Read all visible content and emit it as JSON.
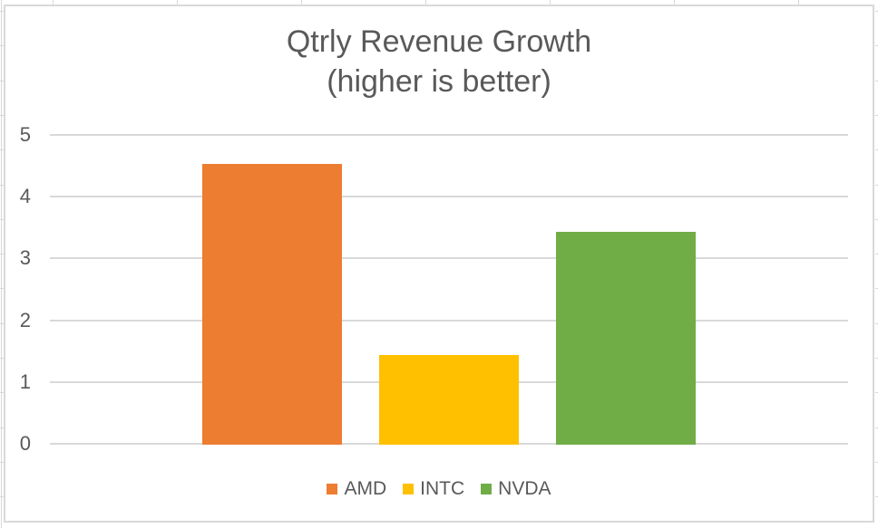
{
  "chart_data": {
    "type": "bar",
    "title": "Qtrly Revenue Growth",
    "subtitle": "(higher is better)",
    "categories": [
      "AMD",
      "INTC",
      "NVDA"
    ],
    "values": [
      4.55,
      1.45,
      3.45
    ],
    "bar_colors": [
      "#ED7D31",
      "#FFC000",
      "#70AD47"
    ],
    "xlabel": "",
    "ylabel": "",
    "ylim": [
      0,
      5
    ],
    "yticks": [
      0,
      1,
      2,
      3,
      4,
      5
    ],
    "grid": true,
    "legend": {
      "position": "bottom",
      "items": [
        {
          "label": "AMD",
          "color": "#ED7D31"
        },
        {
          "label": "INTC",
          "color": "#FFC000"
        },
        {
          "label": "NVDA",
          "color": "#70AD47"
        }
      ]
    },
    "colors": {
      "text": "#595959",
      "gridline": "#D9D9D9",
      "chart_border": "#D9D9D9",
      "background": "#FFFFFF"
    }
  }
}
